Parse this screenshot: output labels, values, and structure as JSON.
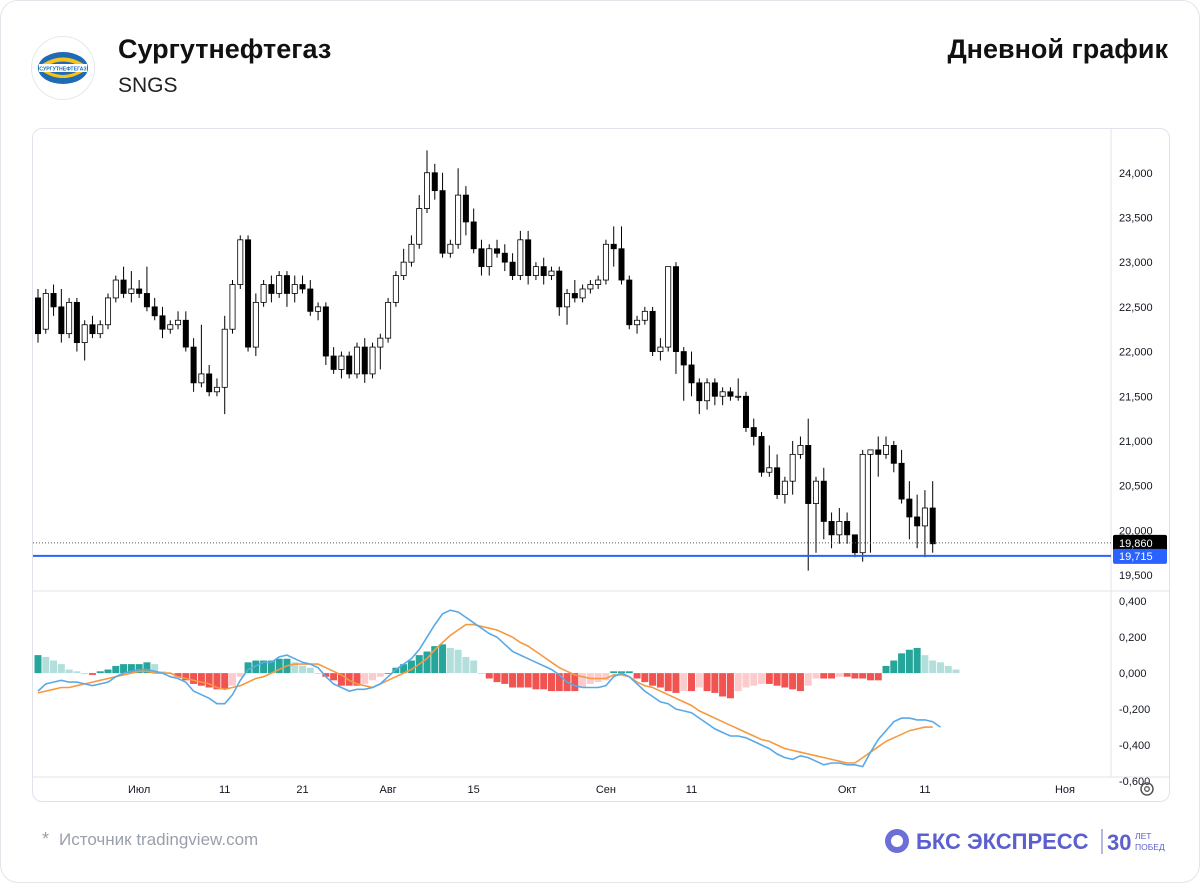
{
  "header": {
    "company": "Сургутнефтегаз",
    "ticker": "SNGS",
    "period": "Дневной график",
    "logo_text": "СУРГУТНЕФТЕГАЗ"
  },
  "footer": {
    "star": "*",
    "source": "Источник tradingview.com",
    "brand_name": "БКС ЭКСПРЕСС",
    "brand_anniversary": "30",
    "brand_anniversary_sub_1": "ЛЕТ",
    "brand_anniversary_sub_2": "ПОБЕД"
  },
  "colors": {
    "candle_up": "#ffffff",
    "candle_down": "#000000",
    "macd_line": "#5aa9e6",
    "signal_line": "#f59a42",
    "hist_pos_strong": "#26a69a",
    "hist_pos_weak": "#b2dfdb",
    "hist_neg_strong": "#f05350",
    "hist_neg_weak": "#fccbcd",
    "level_line": "#2962ff",
    "last_price_bg": "#000000"
  },
  "chart_data": [
    {
      "type": "candlestick",
      "title": "",
      "x_ticks": [
        "Июл",
        "11",
        "21",
        "Авг",
        "15",
        "Сен",
        "11",
        "Окт",
        "11",
        "Ноя"
      ],
      "y_ticks": [
        "24,000",
        "23,500",
        "23,000",
        "22,500",
        "22,000",
        "21,500",
        "21,000",
        "20,500",
        "20,000",
        "19,500"
      ],
      "ylim": [
        19400,
        24400
      ],
      "last_price_label": "19,860",
      "level_label": "19,715",
      "level_value": 19715,
      "last_price_value": 19860,
      "candles": [
        [
          22600,
          22200,
          22700,
          22100
        ],
        [
          22250,
          22650,
          22700,
          22200
        ],
        [
          22650,
          22500,
          22750,
          22400
        ],
        [
          22500,
          22200,
          22700,
          22100
        ],
        [
          22200,
          22550,
          22600,
          22150
        ],
        [
          22550,
          22100,
          22600,
          22000
        ],
        [
          22100,
          22300,
          22350,
          21900
        ],
        [
          22300,
          22200,
          22400,
          22150
        ],
        [
          22200,
          22300,
          22350,
          22150
        ],
        [
          22300,
          22600,
          22650,
          22250
        ],
        [
          22600,
          22800,
          22850,
          22550
        ],
        [
          22800,
          22650,
          22950,
          22600
        ],
        [
          22650,
          22700,
          22900,
          22550
        ],
        [
          22700,
          22650,
          22800,
          22600
        ],
        [
          22650,
          22500,
          22950,
          22450
        ],
        [
          22500,
          22400,
          22600,
          22350
        ],
        [
          22400,
          22250,
          22500,
          22150
        ],
        [
          22250,
          22300,
          22350,
          22200
        ],
        [
          22300,
          22350,
          22450,
          22250
        ],
        [
          22350,
          22050,
          22450,
          22000
        ],
        [
          22050,
          21650,
          22150,
          21550
        ],
        [
          21650,
          21750,
          22300,
          21600
        ],
        [
          21750,
          21550,
          21850,
          21500
        ],
        [
          21550,
          21600,
          21700,
          21500
        ],
        [
          21600,
          22250,
          22400,
          21300
        ],
        [
          22250,
          22750,
          22800,
          22200
        ],
        [
          22750,
          23250,
          23300,
          22700
        ],
        [
          23250,
          22050,
          23300,
          22000
        ],
        [
          22050,
          22550,
          22650,
          21950
        ],
        [
          22550,
          22750,
          22800,
          22500
        ],
        [
          22750,
          22650,
          22850,
          22550
        ],
        [
          22650,
          22850,
          22900,
          22600
        ],
        [
          22850,
          22650,
          22900,
          22500
        ],
        [
          22650,
          22750,
          22850,
          22550
        ],
        [
          22750,
          22700,
          22850,
          22650
        ],
        [
          22700,
          22450,
          22800,
          22400
        ],
        [
          22450,
          22500,
          22550,
          22350
        ],
        [
          22500,
          21950,
          22550,
          21850
        ],
        [
          21950,
          21800,
          22050,
          21750
        ],
        [
          21800,
          21950,
          22000,
          21700
        ],
        [
          21950,
          21750,
          22000,
          21700
        ],
        [
          21750,
          22050,
          22100,
          21700
        ],
        [
          22050,
          21750,
          22150,
          21650
        ],
        [
          21750,
          22050,
          22100,
          21700
        ],
        [
          22050,
          22150,
          22200,
          21800
        ],
        [
          22150,
          22550,
          22600,
          22100
        ],
        [
          22550,
          22850,
          22900,
          22500
        ],
        [
          22850,
          23000,
          23150,
          22800
        ],
        [
          23000,
          23200,
          23300,
          22950
        ],
        [
          23200,
          23600,
          23750,
          23150
        ],
        [
          23600,
          24000,
          24250,
          23550
        ],
        [
          24000,
          23800,
          24100,
          23700
        ],
        [
          23800,
          23100,
          24000,
          23050
        ],
        [
          23100,
          23200,
          23250,
          23050
        ],
        [
          23200,
          23750,
          24050,
          23150
        ],
        [
          23750,
          23450,
          23850,
          23300
        ],
        [
          23450,
          23150,
          23600,
          23100
        ],
        [
          23150,
          22950,
          23250,
          22850
        ],
        [
          22950,
          23150,
          23200,
          22850
        ],
        [
          23150,
          23100,
          23250,
          23050
        ],
        [
          23100,
          23000,
          23200,
          22900
        ],
        [
          23000,
          22850,
          23100,
          22800
        ],
        [
          22850,
          23250,
          23350,
          22800
        ],
        [
          23250,
          22850,
          23350,
          22750
        ],
        [
          22850,
          22950,
          23000,
          22800
        ],
        [
          22950,
          22850,
          23050,
          22750
        ],
        [
          22850,
          22900,
          22950,
          22800
        ],
        [
          22900,
          22500,
          22950,
          22400
        ],
        [
          22500,
          22650,
          22700,
          22300
        ],
        [
          22650,
          22600,
          22800,
          22550
        ],
        [
          22600,
          22700,
          22750,
          22550
        ],
        [
          22700,
          22750,
          22800,
          22650
        ],
        [
          22750,
          22800,
          22850,
          22700
        ],
        [
          22800,
          23200,
          23250,
          22750
        ],
        [
          23200,
          23150,
          23400,
          22950
        ],
        [
          23150,
          22800,
          23400,
          22750
        ],
        [
          22800,
          22300,
          22850,
          22250
        ],
        [
          22300,
          22350,
          22400,
          22200
        ],
        [
          22350,
          22450,
          22500,
          22300
        ],
        [
          22450,
          22000,
          22500,
          21950
        ],
        [
          22000,
          22050,
          22150,
          21900
        ],
        [
          22050,
          22950,
          22950,
          22000
        ],
        [
          22950,
          22000,
          23000,
          21750
        ],
        [
          22000,
          21850,
          22050,
          21450
        ],
        [
          21850,
          21650,
          22000,
          21500
        ],
        [
          21650,
          21450,
          21700,
          21300
        ],
        [
          21450,
          21650,
          21700,
          21350
        ],
        [
          21650,
          21500,
          21700,
          21400
        ],
        [
          21500,
          21550,
          21600,
          21400
        ],
        [
          21550,
          21500,
          21600,
          21450
        ],
        [
          21500,
          21500,
          21700,
          21450
        ],
        [
          21500,
          21150,
          21550,
          21100
        ],
        [
          21150,
          21050,
          21250,
          20950
        ],
        [
          21050,
          20650,
          21100,
          20600
        ],
        [
          20650,
          20700,
          20950,
          20600
        ],
        [
          20700,
          20400,
          20850,
          20350
        ],
        [
          20400,
          20550,
          20600,
          20300
        ],
        [
          20550,
          20850,
          21000,
          20400
        ],
        [
          20850,
          20950,
          21050,
          20800
        ],
        [
          20950,
          20300,
          21250,
          19550
        ],
        [
          20300,
          20550,
          20600,
          19750
        ],
        [
          20550,
          20100,
          20700,
          19900
        ],
        [
          20100,
          19950,
          20200,
          19800
        ],
        [
          19950,
          20100,
          20250,
          19850
        ],
        [
          20100,
          19950,
          20200,
          19850
        ],
        [
          19950,
          19750,
          19950,
          19700
        ],
        [
          19750,
          20850,
          20900,
          19650
        ],
        [
          20850,
          20900,
          20900,
          19750
        ],
        [
          20900,
          20850,
          21050,
          20600
        ],
        [
          20850,
          20950,
          21050,
          20800
        ],
        [
          20950,
          20750,
          21000,
          20650
        ],
        [
          20750,
          20350,
          20900,
          20300
        ],
        [
          20350,
          20150,
          20550,
          19900
        ],
        [
          20150,
          20050,
          20400,
          19800
        ],
        [
          20050,
          20250,
          20450,
          19700
        ],
        [
          20250,
          19850,
          20550,
          19750
        ]
      ],
      "macd": {
        "y_ticks": [
          "0,400",
          "0,200",
          "0,000",
          "-0,200",
          "-0,400",
          "-0,600"
        ],
        "ylim": [
          -0.6,
          0.44
        ],
        "macd_line": [
          -0.1,
          -0.06,
          -0.05,
          -0.04,
          -0.05,
          -0.05,
          -0.06,
          -0.07,
          -0.06,
          -0.05,
          -0.02,
          0,
          0.01,
          0.02,
          0.02,
          0.01,
          0,
          -0.02,
          -0.03,
          -0.05,
          -0.1,
          -0.12,
          -0.14,
          -0.17,
          -0.17,
          -0.12,
          -0.04,
          0.02,
          0.04,
          0.06,
          0.06,
          0.09,
          0.1,
          0.08,
          0.06,
          0.05,
          0.03,
          -0.02,
          -0.06,
          -0.08,
          -0.1,
          -0.09,
          -0.09,
          -0.08,
          -0.06,
          -0.02,
          0.02,
          0.05,
          0.08,
          0.13,
          0.2,
          0.27,
          0.33,
          0.35,
          0.34,
          0.31,
          0.28,
          0.25,
          0.22,
          0.2,
          0.16,
          0.12,
          0.1,
          0.08,
          0.06,
          0.04,
          0.02,
          -0.01,
          -0.05,
          -0.07,
          -0.08,
          -0.08,
          -0.08,
          -0.07,
          -0.02,
          0,
          -0.02,
          -0.06,
          -0.1,
          -0.13,
          -0.16,
          -0.17,
          -0.2,
          -0.21,
          -0.22,
          -0.25,
          -0.28,
          -0.31,
          -0.33,
          -0.35,
          -0.35,
          -0.36,
          -0.38,
          -0.4,
          -0.42,
          -0.45,
          -0.47,
          -0.48,
          -0.46,
          -0.47,
          -0.49,
          -0.51,
          -0.5,
          -0.5,
          -0.51,
          -0.51,
          -0.52,
          -0.44,
          -0.37,
          -0.32,
          -0.27,
          -0.25,
          -0.25,
          -0.26,
          -0.26,
          -0.27,
          -0.3
        ],
        "signal_line": [
          -0.11,
          -0.1,
          -0.09,
          -0.08,
          -0.08,
          -0.07,
          -0.06,
          -0.05,
          -0.04,
          -0.03,
          -0.02,
          -0.01,
          0,
          0.01,
          0.01,
          0,
          0,
          0,
          -0.02,
          -0.03,
          -0.04,
          -0.05,
          -0.06,
          -0.08,
          -0.09,
          -0.08,
          -0.07,
          -0.05,
          -0.03,
          -0.02,
          0,
          0.02,
          0.04,
          0.05,
          0.05,
          0.05,
          0.05,
          0.03,
          0.01,
          -0.01,
          -0.04,
          -0.06,
          -0.07,
          -0.08,
          -0.06,
          -0.04,
          -0.02,
          0,
          0.02,
          0.05,
          0.08,
          0.13,
          0.17,
          0.21,
          0.24,
          0.27,
          0.27,
          0.26,
          0.25,
          0.24,
          0.22,
          0.2,
          0.17,
          0.15,
          0.12,
          0.09,
          0.06,
          0.03,
          0.01,
          -0.01,
          -0.02,
          -0.03,
          -0.03,
          -0.03,
          -0.01,
          -0.01,
          -0.02,
          -0.05,
          -0.07,
          -0.08,
          -0.1,
          -0.12,
          -0.14,
          -0.16,
          -0.18,
          -0.21,
          -0.23,
          -0.25,
          -0.27,
          -0.29,
          -0.31,
          -0.33,
          -0.35,
          -0.37,
          -0.38,
          -0.4,
          -0.42,
          -0.43,
          -0.44,
          -0.45,
          -0.46,
          -0.47,
          -0.48,
          -0.49,
          -0.5,
          -0.5,
          -0.47,
          -0.44,
          -0.41,
          -0.38,
          -0.36,
          -0.34,
          -0.32,
          -0.31,
          -0.3,
          -0.3
        ],
        "histogram": [
          0.1,
          0.09,
          0.07,
          0.05,
          0.02,
          0.01,
          0,
          -0.01,
          0.01,
          0.02,
          0.04,
          0.05,
          0.05,
          0.05,
          0.06,
          0.05,
          0.01,
          0,
          -0.02,
          -0.04,
          -0.06,
          -0.07,
          -0.08,
          -0.09,
          -0.09,
          -0.07,
          -0.02,
          0.06,
          0.07,
          0.07,
          0.07,
          0.08,
          0.08,
          0.06,
          0.04,
          0.03,
          0,
          -0.02,
          -0.04,
          -0.07,
          -0.07,
          -0.07,
          -0.06,
          -0.04,
          -0.02,
          0,
          0.03,
          0.05,
          0.07,
          0.1,
          0.12,
          0.15,
          0.16,
          0.14,
          0.13,
          0.09,
          0.07,
          0,
          -0.03,
          -0.05,
          -0.06,
          -0.08,
          -0.08,
          -0.08,
          -0.09,
          -0.09,
          -0.1,
          -0.1,
          -0.1,
          -0.1,
          -0.08,
          -0.06,
          -0.05,
          -0.04,
          0.01,
          0.01,
          0.01,
          -0.03,
          -0.05,
          -0.07,
          -0.08,
          -0.1,
          -0.11,
          -0.1,
          -0.1,
          -0.08,
          -0.1,
          -0.11,
          -0.13,
          -0.14,
          -0.1,
          -0.08,
          -0.07,
          -0.06,
          -0.06,
          -0.07,
          -0.08,
          -0.09,
          -0.1,
          -0.07,
          -0.03,
          -0.03,
          -0.03,
          -0.02,
          -0.02,
          -0.03,
          -0.03,
          -0.04,
          -0.04,
          0.04,
          0.07,
          0.11,
          0.13,
          0.14,
          0.1,
          0.07,
          0.06,
          0.04,
          0.02
        ]
      }
    }
  ]
}
